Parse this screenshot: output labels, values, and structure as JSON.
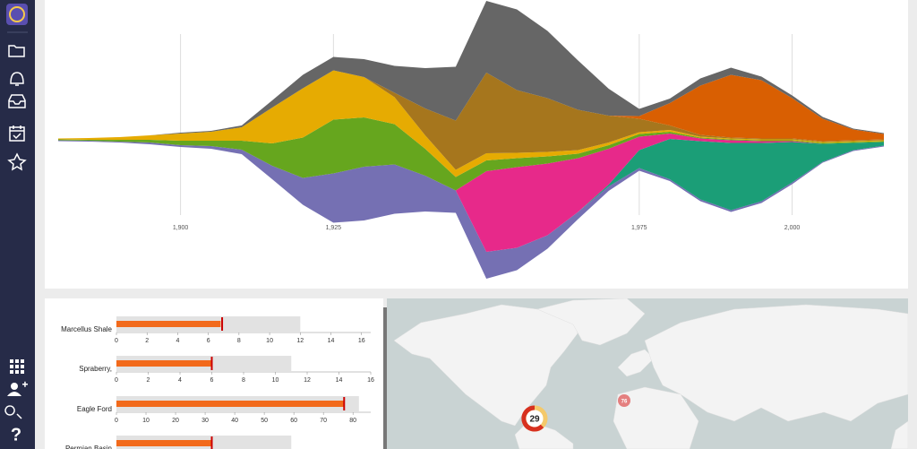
{
  "chart_data": [
    {
      "type": "streamgraph",
      "x": [
        1880,
        1885,
        1890,
        1895,
        1900,
        1905,
        1910,
        1915,
        1920,
        1925,
        1930,
        1935,
        1940,
        1945,
        1950,
        1955,
        1960,
        1965,
        1970,
        1975,
        1980,
        1985,
        1990,
        1995,
        2000,
        2005,
        2010,
        2015
      ],
      "xlim": [
        1880,
        2015
      ],
      "xticks": [
        {
          "value": 1900,
          "label": "1,900"
        },
        {
          "value": 1925,
          "label": "1,925"
        },
        {
          "value": 1975,
          "label": "1,975"
        },
        {
          "value": 2000,
          "label": "2,000"
        }
      ],
      "grid": true,
      "series": [
        {
          "color": "#7570b3",
          "values": [
            1,
            1,
            1,
            2,
            2,
            3,
            5,
            15,
            30,
            55,
            60,
            55,
            40,
            25,
            30,
            25,
            15,
            8,
            5,
            3,
            2,
            2,
            2,
            2,
            2,
            1,
            1,
            1
          ]
        },
        {
          "color": "#1b9e77",
          "values": [
            0,
            0,
            0,
            0,
            0,
            0,
            0,
            0,
            0,
            0,
            0,
            0,
            0,
            0,
            0,
            0,
            0,
            0,
            2,
            20,
            45,
            65,
            75,
            65,
            45,
            20,
            8,
            4
          ]
        },
        {
          "color": "#e7298a",
          "values": [
            0,
            0,
            0,
            0,
            0,
            0,
            0,
            0,
            0,
            0,
            0,
            0,
            0,
            0,
            90,
            90,
            80,
            60,
            40,
            15,
            6,
            3,
            3,
            2,
            1,
            0,
            0,
            0
          ]
        },
        {
          "color": "#66a61e",
          "values": [
            1,
            1,
            2,
            3,
            5,
            6,
            10,
            25,
            45,
            60,
            55,
            45,
            30,
            15,
            12,
            10,
            8,
            5,
            4,
            3,
            2,
            1,
            1,
            1,
            1,
            1,
            1,
            1
          ]
        },
        {
          "color": "#e6ab02",
          "values": [
            1,
            2,
            3,
            5,
            8,
            10,
            15,
            40,
            55,
            55,
            45,
            30,
            15,
            8,
            8,
            6,
            5,
            4,
            3,
            2,
            2,
            1,
            1,
            1,
            1,
            1,
            1,
            1
          ]
        },
        {
          "color": "#a6761d",
          "values": [
            0,
            0,
            0,
            0,
            0,
            0,
            0,
            0,
            0,
            0,
            0,
            5,
            30,
            55,
            90,
            70,
            60,
            45,
            30,
            15,
            5,
            2,
            1,
            1,
            1,
            1,
            1,
            1
          ]
        },
        {
          "color": "#d95f02",
          "values": [
            0,
            0,
            0,
            0,
            0,
            0,
            0,
            0,
            0,
            0,
            0,
            0,
            0,
            0,
            0,
            0,
            0,
            0,
            0,
            3,
            25,
            55,
            70,
            65,
            45,
            25,
            12,
            6
          ]
        },
        {
          "color": "#666666",
          "values": [
            0,
            0,
            0,
            0,
            1,
            1,
            2,
            8,
            15,
            15,
            20,
            30,
            45,
            60,
            80,
            90,
            75,
            55,
            30,
            8,
            5,
            8,
            8,
            4,
            3,
            2,
            1,
            1
          ]
        }
      ]
    },
    {
      "type": "bullet",
      "items": [
        {
          "label": "Marcellus Shale",
          "measure": 6.8,
          "marker": 6.9,
          "range": 12,
          "xlim": [
            0,
            16.6
          ],
          "xticks": [
            0,
            2,
            4,
            6,
            8,
            10,
            12,
            14,
            16
          ]
        },
        {
          "label": "Spraberry,",
          "measure": 6,
          "marker": 6,
          "range": 11,
          "xlim": [
            0,
            16
          ],
          "xticks": [
            0,
            2,
            4,
            6,
            8,
            10,
            12,
            14,
            16
          ]
        },
        {
          "label": "Eagle Ford",
          "measure": 77,
          "marker": 77,
          "range": 82,
          "xlim": [
            0,
            86
          ],
          "xticks": [
            0,
            10,
            20,
            30,
            40,
            50,
            60,
            70,
            80
          ]
        },
        {
          "label": "Permian Basin",
          "measure": 6,
          "marker": 6,
          "range": 11,
          "xlim": [
            0,
            16
          ],
          "xticks": []
        }
      ]
    }
  ],
  "map": {
    "clusters": [
      {
        "label": "29"
      },
      {
        "label": "76"
      }
    ]
  },
  "sidebar": {
    "help": "?"
  }
}
